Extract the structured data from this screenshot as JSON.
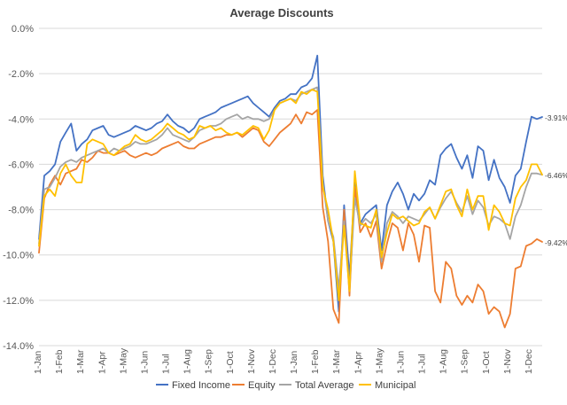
{
  "chart_data": {
    "type": "line",
    "title": "Average Discounts",
    "xlabel": "",
    "ylabel": "",
    "ylim": [
      -14,
      0
    ],
    "y_ticks": [
      0,
      -2,
      -4,
      -6,
      -8,
      -10,
      -12,
      -14
    ],
    "y_tick_labels": [
      "0.0%",
      "-2.0%",
      "-4.0%",
      "-6.0%",
      "-8.0%",
      "-10.0%",
      "-12.0%",
      "-14.0%"
    ],
    "grid": "horizontal",
    "legend_position": "bottom",
    "x_tick_labels": [
      "1-Jan",
      "1-Feb",
      "1-Mar",
      "1-Apr",
      "1-May",
      "1-Jun",
      "1-Jul",
      "1-Aug",
      "1-Sep",
      "1-Oct",
      "1-Nov",
      "1-Dec",
      "1-Jan",
      "1-Feb",
      "1-Mar",
      "1-Apr",
      "1-May",
      "1-Jun",
      "1-Jul",
      "1-Aug",
      "1-Sep",
      "1-Oct",
      "1-Nov",
      "1-Dec"
    ],
    "series": [
      {
        "name": "Fixed Income",
        "color": "#4472C4",
        "values": [
          -9.3,
          -6.5,
          -6.3,
          -6.0,
          -5.0,
          -4.6,
          -4.2,
          -5.4,
          -5.1,
          -4.9,
          -4.5,
          -4.4,
          -4.3,
          -4.7,
          -4.8,
          -4.7,
          -4.6,
          -4.5,
          -4.3,
          -4.4,
          -4.5,
          -4.4,
          -4.2,
          -4.1,
          -3.8,
          -4.1,
          -4.3,
          -4.4,
          -4.6,
          -4.4,
          -4.0,
          -3.9,
          -3.8,
          -3.7,
          -3.5,
          -3.4,
          -3.3,
          -3.2,
          -3.1,
          -3.0,
          -3.3,
          -3.5,
          -3.7,
          -3.9,
          -3.5,
          -3.2,
          -3.1,
          -2.9,
          -2.9,
          -2.6,
          -2.5,
          -2.2,
          -1.2,
          -6.5,
          -8.5,
          -9.4,
          -12.5,
          -7.8,
          -11.0,
          -6.8,
          -8.6,
          -8.2,
          -8.0,
          -7.8,
          -9.8,
          -7.8,
          -7.2,
          -6.8,
          -7.3,
          -8.0,
          -7.3,
          -7.6,
          -7.3,
          -6.7,
          -6.9,
          -5.6,
          -5.3,
          -5.1,
          -5.7,
          -6.2,
          -5.6,
          -6.6,
          -5.2,
          -5.4,
          -6.7,
          -5.8,
          -6.6,
          -7.0,
          -7.7,
          -6.5,
          -6.2,
          -5.0,
          -3.9,
          -4.0,
          -3.91
        ]
      },
      {
        "name": "Equity",
        "color": "#ED7D31",
        "values": [
          -9.9,
          -7.5,
          -6.9,
          -6.5,
          -6.9,
          -6.4,
          -6.3,
          -6.2,
          -5.8,
          -5.9,
          -5.7,
          -5.4,
          -5.5,
          -5.5,
          -5.6,
          -5.5,
          -5.4,
          -5.6,
          -5.7,
          -5.6,
          -5.5,
          -5.6,
          -5.5,
          -5.3,
          -5.2,
          -5.1,
          -5.0,
          -5.2,
          -5.3,
          -5.3,
          -5.1,
          -5.0,
          -4.9,
          -4.8,
          -4.8,
          -4.7,
          -4.7,
          -4.6,
          -4.8,
          -4.6,
          -4.4,
          -4.5,
          -5.0,
          -5.2,
          -4.9,
          -4.6,
          -4.4,
          -4.2,
          -3.8,
          -4.2,
          -3.7,
          -3.8,
          -3.6,
          -7.9,
          -9.4,
          -12.4,
          -13.0,
          -8.0,
          -11.8,
          -7.0,
          -9.0,
          -8.6,
          -9.2,
          -8.5,
          -10.6,
          -9.5,
          -8.6,
          -8.8,
          -9.8,
          -8.6,
          -9.1,
          -10.3,
          -8.7,
          -8.8,
          -11.6,
          -12.1,
          -10.3,
          -10.6,
          -11.8,
          -12.2,
          -11.8,
          -12.1,
          -11.3,
          -11.6,
          -12.6,
          -12.3,
          -12.5,
          -13.2,
          -12.6,
          -10.6,
          -10.5,
          -9.6,
          -9.5,
          -9.3,
          -9.42
        ]
      },
      {
        "name": "Total Average",
        "color": "#A5A5A5",
        "values": [
          -9.5,
          -7.1,
          -7.0,
          -6.6,
          -6.1,
          -5.9,
          -5.8,
          -5.9,
          -5.7,
          -5.6,
          -5.5,
          -5.4,
          -5.3,
          -5.5,
          -5.3,
          -5.4,
          -5.3,
          -5.2,
          -5.0,
          -5.1,
          -5.1,
          -5.0,
          -4.9,
          -4.7,
          -4.4,
          -4.7,
          -4.8,
          -4.9,
          -5.0,
          -4.8,
          -4.5,
          -4.4,
          -4.3,
          -4.3,
          -4.2,
          -4.0,
          -3.9,
          -3.8,
          -4.0,
          -3.9,
          -4.0,
          -4.0,
          -4.1,
          -4.0,
          -3.6,
          -3.3,
          -3.2,
          -3.1,
          -3.2,
          -2.9,
          -2.8,
          -2.7,
          -2.6,
          -6.8,
          -8.5,
          -9.2,
          -11.5,
          -8.5,
          -11.5,
          -7.5,
          -8.7,
          -8.4,
          -8.6,
          -8.2,
          -10.3,
          -8.6,
          -8.1,
          -8.3,
          -8.6,
          -8.3,
          -8.4,
          -8.5,
          -8.2,
          -7.9,
          -8.4,
          -7.9,
          -7.5,
          -7.2,
          -7.7,
          -8.1,
          -7.4,
          -8.2,
          -7.6,
          -7.9,
          -8.7,
          -8.3,
          -8.4,
          -8.6,
          -9.3,
          -8.3,
          -7.8,
          -7.0,
          -6.4,
          -6.4,
          -6.46
        ]
      },
      {
        "name": "Municipal",
        "color": "#FFC000",
        "values": [
          -9.6,
          -7.4,
          -7.1,
          -7.4,
          -6.4,
          -6.0,
          -6.5,
          -6.8,
          -6.8,
          -5.1,
          -4.9,
          -5.0,
          -5.1,
          -5.5,
          -5.6,
          -5.4,
          -5.2,
          -5.1,
          -4.7,
          -4.9,
          -5.0,
          -4.9,
          -4.7,
          -4.5,
          -4.2,
          -4.4,
          -4.6,
          -4.7,
          -4.9,
          -4.8,
          -4.3,
          -4.4,
          -4.3,
          -4.5,
          -4.4,
          -4.6,
          -4.7,
          -4.6,
          -4.7,
          -4.5,
          -4.3,
          -4.4,
          -4.9,
          -4.5,
          -3.6,
          -3.3,
          -3.2,
          -3.1,
          -3.3,
          -2.8,
          -2.9,
          -2.7,
          -2.8,
          -7.0,
          -8.0,
          -9.4,
          -12.0,
          -8.7,
          -11.6,
          -6.3,
          -8.6,
          -8.7,
          -8.8,
          -8.0,
          -10.1,
          -9.0,
          -8.2,
          -8.4,
          -8.3,
          -8.5,
          -8.7,
          -8.6,
          -8.1,
          -7.9,
          -8.4,
          -7.8,
          -7.2,
          -7.1,
          -7.8,
          -8.3,
          -7.1,
          -8.0,
          -7.4,
          -7.4,
          -8.9,
          -7.8,
          -8.1,
          -8.6,
          -8.7,
          -7.5,
          -7.0,
          -6.7,
          -6.0,
          -6.0,
          -6.46
        ]
      }
    ],
    "end_labels": [
      "-3.91%",
      "-6.46%",
      "-9.42%"
    ]
  }
}
